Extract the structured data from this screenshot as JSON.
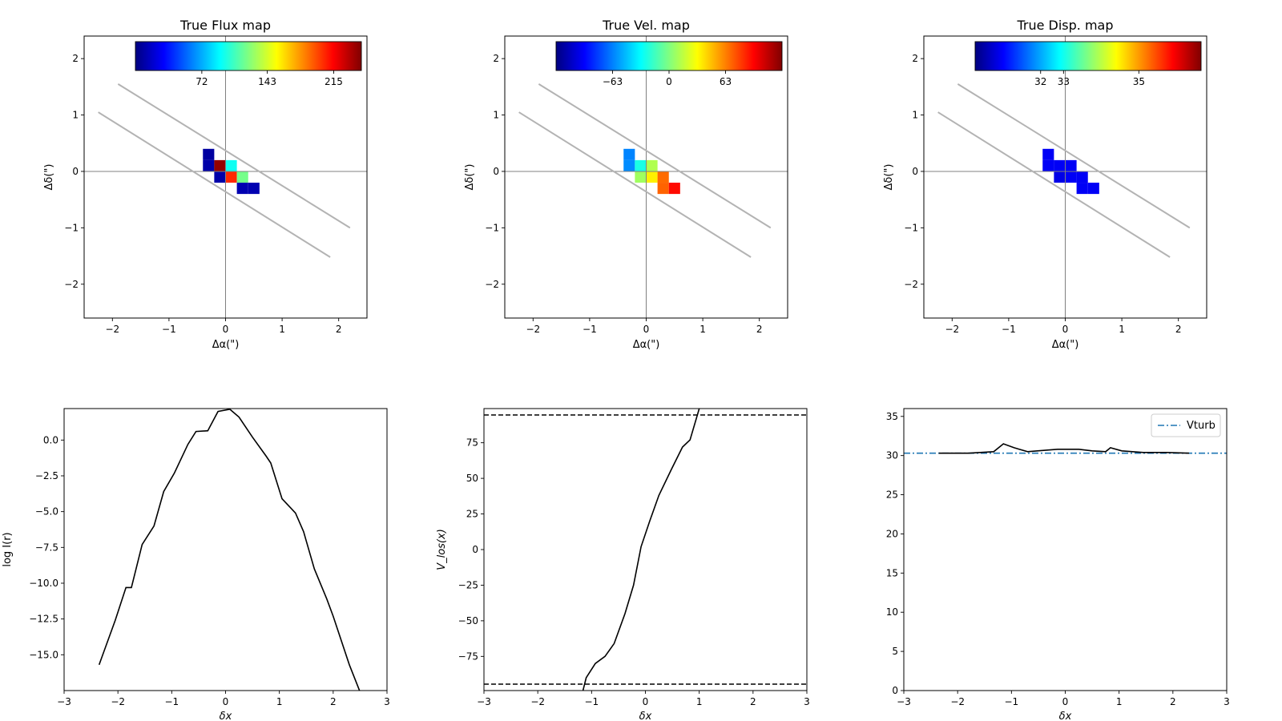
{
  "chart_data": [
    {
      "id": "flux",
      "type": "heatmap",
      "title": "True Flux map",
      "xlabel": "Δα(\")",
      "ylabel": "Δδ(\")",
      "xlim": [
        -2.5,
        2.5
      ],
      "ylim": [
        -2.6,
        2.4
      ],
      "xticks": [
        -2,
        -1,
        0,
        1,
        2
      ],
      "yticks": [
        -2,
        -1,
        0,
        1,
        2
      ],
      "xtick_labels": [
        "−2",
        "−1",
        "0",
        "1",
        "2"
      ],
      "ytick_labels": [
        "−2",
        "−1",
        "0",
        "1",
        "2"
      ],
      "pixel_size": 0.2,
      "colorbar": {
        "vmin": 0,
        "vmax": 245,
        "ticks": [
          72,
          143,
          215
        ],
        "tick_labels": [
          "72",
          "143",
          "215"
        ],
        "placement": "top-inside"
      },
      "cells": [
        {
          "x": -0.4,
          "y": 0.2,
          "value": 8
        },
        {
          "x": -0.4,
          "y": 0.0,
          "value": 10
        },
        {
          "x": -0.2,
          "y": 0.0,
          "value": 240
        },
        {
          "x": 0.0,
          "y": 0.0,
          "value": 95
        },
        {
          "x": -0.2,
          "y": -0.2,
          "value": 10
        },
        {
          "x": 0.0,
          "y": -0.2,
          "value": 205
        },
        {
          "x": 0.2,
          "y": -0.2,
          "value": 120
        },
        {
          "x": 0.2,
          "y": -0.4,
          "value": 12
        },
        {
          "x": 0.4,
          "y": -0.4,
          "value": 12
        }
      ],
      "slit_lines": [
        {
          "from": [
            -1.9,
            1.55
          ],
          "to": [
            2.2,
            -1.0
          ]
        },
        {
          "from": [
            -2.25,
            1.05
          ],
          "to": [
            1.85,
            -1.52
          ]
        }
      ]
    },
    {
      "id": "vel",
      "type": "heatmap",
      "title": "True Vel. map",
      "xlabel": "Δα(\")",
      "ylabel": "Δδ(\")",
      "xlim": [
        -2.5,
        2.5
      ],
      "ylim": [
        -2.6,
        2.4
      ],
      "xticks": [
        -2,
        -1,
        0,
        1,
        2
      ],
      "yticks": [
        -2,
        -1,
        0,
        1,
        2
      ],
      "xtick_labels": [
        "−2",
        "−1",
        "0",
        "1",
        "2"
      ],
      "ytick_labels": [
        "−2",
        "−1",
        "0",
        "1",
        "2"
      ],
      "pixel_size": 0.2,
      "colorbar": {
        "vmin": -126,
        "vmax": 126,
        "ticks": [
          -63,
          0,
          63
        ],
        "tick_labels": [
          "−63",
          "0",
          "63"
        ],
        "placement": "top-inside"
      },
      "cells": [
        {
          "x": -0.4,
          "y": 0.2,
          "value": -62
        },
        {
          "x": -0.4,
          "y": 0.0,
          "value": -60
        },
        {
          "x": -0.2,
          "y": 0.0,
          "value": -25
        },
        {
          "x": 0.0,
          "y": 0.0,
          "value": 12
        },
        {
          "x": -0.2,
          "y": -0.2,
          "value": 8
        },
        {
          "x": 0.0,
          "y": -0.2,
          "value": 35
        },
        {
          "x": 0.2,
          "y": -0.2,
          "value": 68
        },
        {
          "x": 0.2,
          "y": -0.4,
          "value": 70
        },
        {
          "x": 0.4,
          "y": -0.4,
          "value": 92
        }
      ],
      "slit_lines": [
        {
          "from": [
            -1.9,
            1.55
          ],
          "to": [
            2.2,
            -1.0
          ]
        },
        {
          "from": [
            -2.25,
            1.05
          ],
          "to": [
            1.85,
            -1.52
          ]
        }
      ]
    },
    {
      "id": "disp",
      "type": "heatmap",
      "title": "True Disp. map",
      "xlabel": "Δα(\")",
      "ylabel": "Δδ(\")",
      "xlim": [
        -2.5,
        2.5
      ],
      "ylim": [
        -2.6,
        2.4
      ],
      "xticks": [
        -2,
        -1,
        0,
        1,
        2
      ],
      "yticks": [
        -2,
        -1,
        0,
        1,
        2
      ],
      "xtick_labels": [
        "−2",
        "−1",
        "0",
        "1",
        "2"
      ],
      "ytick_labels": [
        "−2",
        "−1",
        "0",
        "1",
        "2"
      ],
      "pixel_size": 0.2,
      "colorbar": {
        "vmin": 30.3,
        "vmax": 37.2,
        "ticks": [
          32.3,
          33.0,
          35.3
        ],
        "tick_labels": [
          "32",
          "33",
          "35"
        ],
        "placement": "top-inside"
      },
      "cells": [
        {
          "x": -0.4,
          "y": 0.2,
          "value": 31.1
        },
        {
          "x": -0.4,
          "y": 0.0,
          "value": 31.1
        },
        {
          "x": -0.2,
          "y": 0.0,
          "value": 31.1
        },
        {
          "x": 0.0,
          "y": 0.0,
          "value": 31.1
        },
        {
          "x": -0.2,
          "y": -0.2,
          "value": 31.0
        },
        {
          "x": 0.0,
          "y": -0.2,
          "value": 31.1
        },
        {
          "x": 0.2,
          "y": -0.2,
          "value": 31.1
        },
        {
          "x": 0.2,
          "y": -0.4,
          "value": 31.1
        },
        {
          "x": 0.4,
          "y": -0.4,
          "value": 31.1
        }
      ],
      "slit_lines": [
        {
          "from": [
            -1.9,
            1.55
          ],
          "to": [
            2.2,
            -1.0
          ]
        },
        {
          "from": [
            -2.25,
            1.05
          ],
          "to": [
            1.85,
            -1.52
          ]
        }
      ]
    },
    {
      "id": "intensity",
      "type": "line",
      "xlabel": "δx",
      "ylabel": "log I(r)",
      "xlim": [
        -3,
        3
      ],
      "ylim": [
        -17.5,
        2.2
      ],
      "xticks": [
        -3,
        -2,
        -1,
        0,
        1,
        2,
        3
      ],
      "xtick_labels": [
        "−3",
        "−2",
        "−1",
        "0",
        "1",
        "2",
        "3"
      ],
      "yticks": [
        0,
        -2.5,
        -5,
        -7.5,
        -10,
        -12.5,
        -15
      ],
      "ytick_labels": [
        "0.0",
        "−2.5",
        "−5.0",
        "−7.5",
        "−10.0",
        "−12.5",
        "−15.0"
      ],
      "x": [
        -2.35,
        -2.05,
        -1.85,
        -1.75,
        -1.55,
        -1.33,
        -1.15,
        -0.95,
        -0.7,
        -0.55,
        -0.33,
        -0.14,
        0.08,
        0.25,
        0.5,
        0.75,
        0.84,
        1.05,
        1.3,
        1.45,
        1.65,
        1.88,
        2.0,
        2.3,
        2.5
      ],
      "y": [
        -15.7,
        -12.6,
        -10.3,
        -10.3,
        -7.3,
        -6.0,
        -3.6,
        -2.3,
        -0.3,
        0.6,
        0.65,
        2.0,
        2.15,
        1.6,
        0.2,
        -1.1,
        -1.6,
        -4.1,
        -5.1,
        -6.4,
        -9.0,
        -11.1,
        -12.3,
        -15.7,
        -17.6
      ],
      "style": "solid-black"
    },
    {
      "id": "velocity",
      "type": "line",
      "xlabel": "δx",
      "ylabel": "V_los(x)",
      "xlim": [
        -3,
        3
      ],
      "ylim": [
        -99,
        99
      ],
      "xticks": [
        -3,
        -2,
        -1,
        0,
        1,
        2,
        3
      ],
      "xtick_labels": [
        "−3",
        "−2",
        "−1",
        "0",
        "1",
        "2",
        "3"
      ],
      "yticks": [
        -75,
        -50,
        -25,
        0,
        25,
        50,
        75
      ],
      "ytick_labels": [
        "−75",
        "−50",
        "−25",
        "0",
        "25",
        "50",
        "75"
      ],
      "x": [
        -1.2,
        -1.1,
        -0.93,
        -0.75,
        -0.58,
        -0.38,
        -0.22,
        -0.08,
        0.08,
        0.25,
        0.48,
        0.69,
        0.83,
        1.0
      ],
      "y": [
        -105,
        -90,
        -80,
        -75,
        -66,
        -45,
        -25,
        2,
        20,
        38,
        56,
        72,
        77,
        99
      ],
      "hlines": [
        {
          "y": 94.5,
          "style": "dashed"
        },
        {
          "y": -94.5,
          "style": "dashed"
        }
      ],
      "style": "solid-black"
    },
    {
      "id": "dispersion",
      "type": "line",
      "xlabel": "δx",
      "ylabel": "",
      "xlim": [
        -3,
        3
      ],
      "ylim": [
        0,
        36
      ],
      "xticks": [
        -3,
        -2,
        -1,
        0,
        1,
        2,
        3
      ],
      "xtick_labels": [
        "−3",
        "−2",
        "−1",
        "0",
        "1",
        "2",
        "3"
      ],
      "yticks": [
        0,
        5,
        10,
        15,
        20,
        25,
        30,
        35
      ],
      "ytick_labels": [
        "0",
        "5",
        "10",
        "15",
        "20",
        "25",
        "30",
        "35"
      ],
      "x": [
        -2.35,
        -1.8,
        -1.33,
        -1.15,
        -0.95,
        -0.7,
        -0.33,
        -0.14,
        0.08,
        0.25,
        0.5,
        0.75,
        0.84,
        1.05,
        1.45,
        1.88,
        2.3
      ],
      "y": [
        30.3,
        30.3,
        30.5,
        31.5,
        31.0,
        30.5,
        30.7,
        30.8,
        30.8,
        30.8,
        30.6,
        30.5,
        31.0,
        30.6,
        30.4,
        30.4,
        30.3
      ],
      "hlines": [
        {
          "y": 30.3,
          "style": "dashdot",
          "color": "#1f77b4",
          "label": "Vturb"
        }
      ],
      "legend": {
        "placement": "top-right",
        "entries": [
          "Vturb"
        ]
      },
      "style": "solid-black"
    }
  ],
  "colors": {
    "axes": "#000000",
    "crosshair": "#808080",
    "slit": "#b3b3b3",
    "line": "#000000",
    "vturb": "#1f77b4"
  }
}
